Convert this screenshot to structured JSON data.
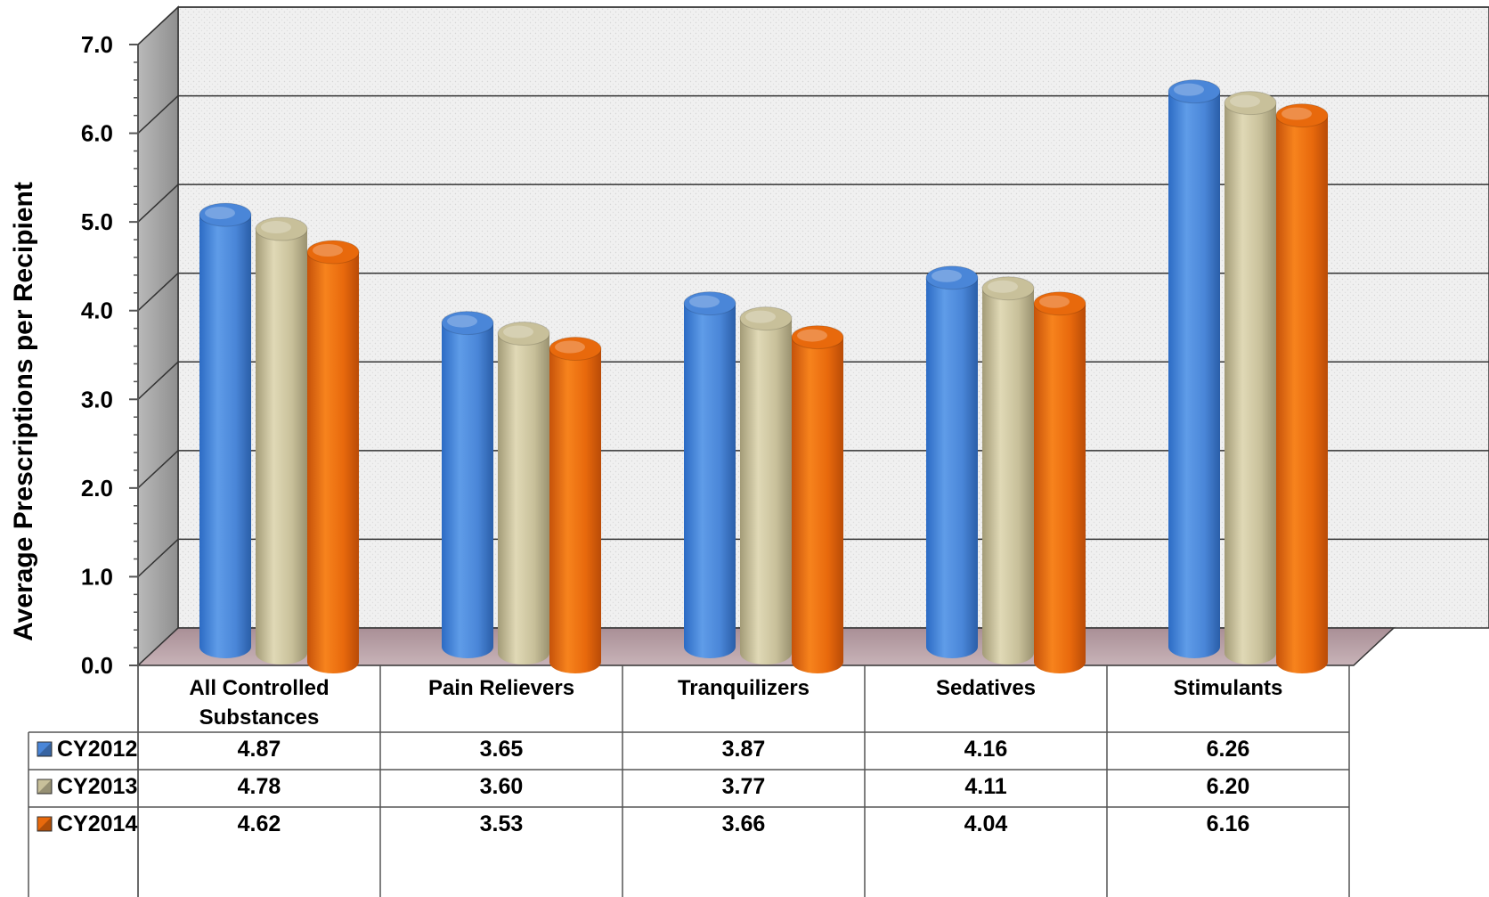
{
  "chart_data": {
    "type": "bar",
    "ylabel": "Average Prescriptions per Recipient",
    "ylim": [
      0,
      7
    ],
    "yticks": [
      "0.0",
      "1.0",
      "2.0",
      "3.0",
      "4.0",
      "5.0",
      "6.0",
      "7.0"
    ],
    "categories": [
      [
        "All Controlled",
        "Substances"
      ],
      [
        "Pain Relievers"
      ],
      [
        "Tranquilizers"
      ],
      [
        "Sedatives"
      ],
      [
        "Stimulants"
      ]
    ],
    "series": [
      {
        "name": "CY2012",
        "color": "#4a86d8",
        "values": [
          4.87,
          3.65,
          3.87,
          4.16,
          6.26
        ],
        "labels": [
          "4.87",
          "3.65",
          "3.87",
          "4.16",
          "6.26"
        ]
      },
      {
        "name": "CY2013",
        "color": "#c8c09a",
        "values": [
          4.78,
          3.6,
          3.77,
          4.11,
          6.2
        ],
        "labels": [
          "4.78",
          "3.60",
          "3.77",
          "4.11",
          "6.20"
        ]
      },
      {
        "name": "CY2014",
        "color": "#e8690c",
        "values": [
          4.62,
          3.53,
          3.66,
          4.04,
          6.16
        ],
        "labels": [
          "4.62",
          "3.53",
          "3.66",
          "4.04",
          "6.16"
        ]
      }
    ],
    "grid": true,
    "legend": "data-table"
  }
}
